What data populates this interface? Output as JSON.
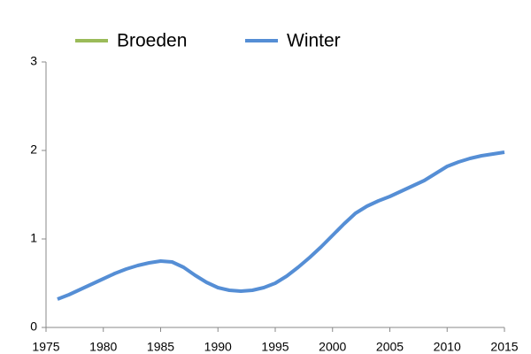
{
  "chart_data": {
    "type": "line",
    "x": [
      1976,
      1977,
      1978,
      1979,
      1980,
      1981,
      1982,
      1983,
      1984,
      1985,
      1986,
      1987,
      1988,
      1989,
      1990,
      1991,
      1992,
      1993,
      1994,
      1995,
      1996,
      1997,
      1998,
      1999,
      2000,
      2001,
      2002,
      2003,
      2004,
      2005,
      2006,
      2007,
      2008,
      2009,
      2010,
      2011,
      2012,
      2013,
      2014,
      2015
    ],
    "series": [
      {
        "name": "Broeden",
        "color": "#9bbb59",
        "values": [
          null,
          null,
          null,
          null,
          null,
          null,
          null,
          null,
          null,
          null,
          null,
          null,
          null,
          null,
          null,
          null,
          null,
          null,
          null,
          null,
          null,
          null,
          null,
          null,
          null,
          null,
          null,
          null,
          null,
          null,
          null,
          null,
          null,
          null,
          null,
          null,
          null,
          null,
          null,
          null
        ]
      },
      {
        "name": "Winter",
        "color": "#558ed5",
        "values": [
          0.32,
          0.37,
          0.43,
          0.49,
          0.55,
          0.61,
          0.66,
          0.7,
          0.73,
          0.75,
          0.74,
          0.68,
          0.59,
          0.51,
          0.45,
          0.42,
          0.41,
          0.42,
          0.45,
          0.5,
          0.58,
          0.68,
          0.79,
          0.91,
          1.04,
          1.17,
          1.29,
          1.37,
          1.43,
          1.48,
          1.54,
          1.6,
          1.66,
          1.74,
          1.82,
          1.87,
          1.91,
          1.94,
          1.96,
          1.98
        ]
      }
    ],
    "xlim": [
      1975,
      2015
    ],
    "xticks": [
      1975,
      1980,
      1985,
      1990,
      1995,
      2000,
      2005,
      2010,
      2015
    ],
    "ylim": [
      0,
      3
    ],
    "yticks": [
      0,
      1,
      2,
      3
    ],
    "grid": false
  }
}
